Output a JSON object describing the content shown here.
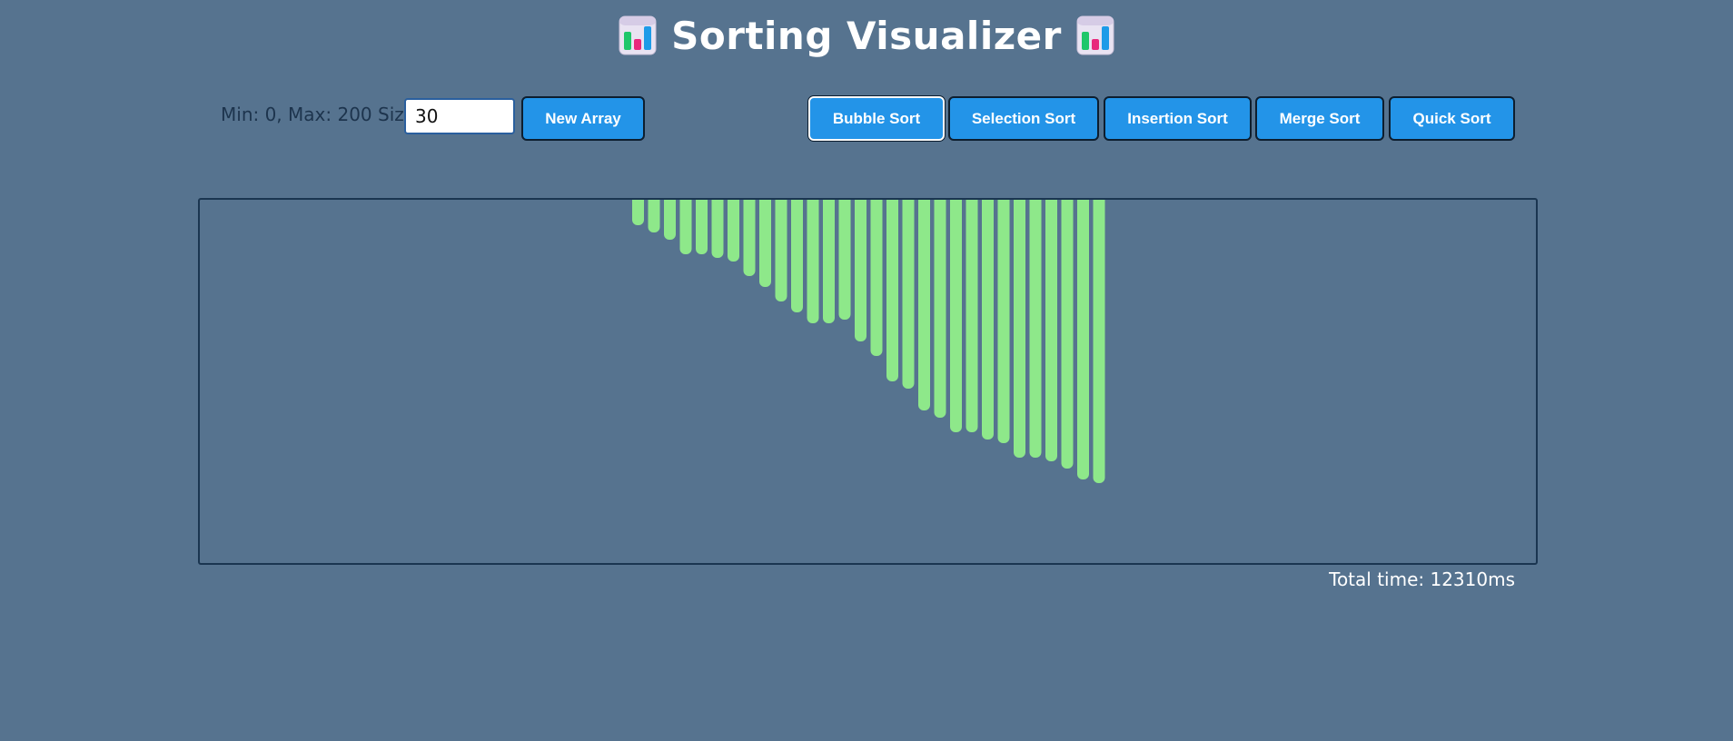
{
  "header": {
    "title": "Sorting Visualizer",
    "icon_left": "bar-chart-icon",
    "icon_right": "bar-chart-icon"
  },
  "controls": {
    "range_size_label": "Min: 0, Max: 200 Size",
    "size_value": "30",
    "new_array_label": "New Array"
  },
  "algorithms": [
    {
      "label": "Bubble Sort",
      "active": true
    },
    {
      "label": "Selection Sort",
      "active": false
    },
    {
      "label": "Insertion Sort",
      "active": false
    },
    {
      "label": "Merge Sort",
      "active": false
    },
    {
      "label": "Quick Sort",
      "active": false
    }
  ],
  "status": {
    "total_time": "Total time: 12310ms"
  },
  "colors": {
    "background": "#56738f",
    "button": "#2394e8",
    "bar": "#8ee88a",
    "label": "#1d344d"
  },
  "chart_data": {
    "type": "bar",
    "values": [
      7,
      9,
      11,
      15,
      15,
      16,
      17,
      21,
      24,
      28,
      31,
      34,
      34,
      33,
      39,
      43,
      50,
      52,
      58,
      60,
      64,
      64,
      66,
      67,
      71,
      71,
      72,
      74,
      77,
      78
    ],
    "max": 200
  }
}
